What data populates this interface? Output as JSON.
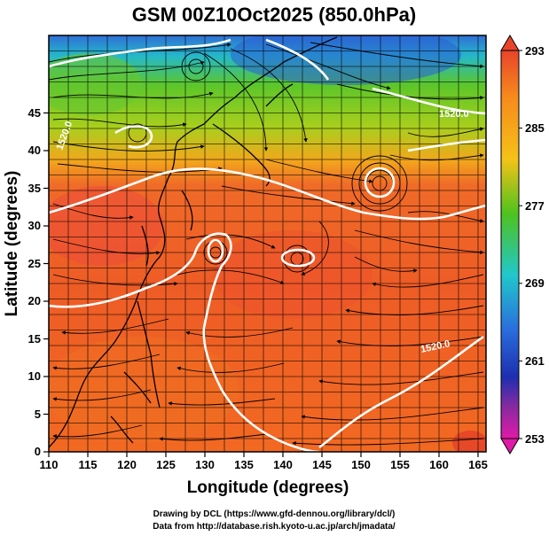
{
  "title": "GSM 00Z10Oct2025 (850.0hPa)",
  "x_axis": {
    "label": "Longitude (degrees)",
    "ticks": [
      "110",
      "115",
      "120",
      "125",
      "130",
      "135",
      "140",
      "145",
      "150",
      "155",
      "160",
      "165"
    ]
  },
  "y_axis": {
    "label": "Latitude  (degrees)",
    "ticks": [
      "0",
      "5",
      "10",
      "15",
      "20",
      "25",
      "30",
      "35",
      "40",
      "45"
    ]
  },
  "colorbar": {
    "labels": [
      "293",
      "285",
      "277",
      "269",
      "261",
      "253"
    ],
    "colors": [
      "#e8442a",
      "#f78a1c",
      "#f5c218",
      "#4fc21e",
      "#21c7cc",
      "#2a6ddc",
      "#1c2fb0",
      "#8a2aa0",
      "#e01aa8"
    ]
  },
  "contour_labels": [
    "1520.0",
    "1520.0",
    "1520.0"
  ],
  "credits": {
    "line1": "Drawing by DCL (https://www.gfd-dennou.org/library/dcl/)",
    "line2": "Data from http://database.rish.kyoto-u.ac.jp/arch/jmadata/"
  }
}
